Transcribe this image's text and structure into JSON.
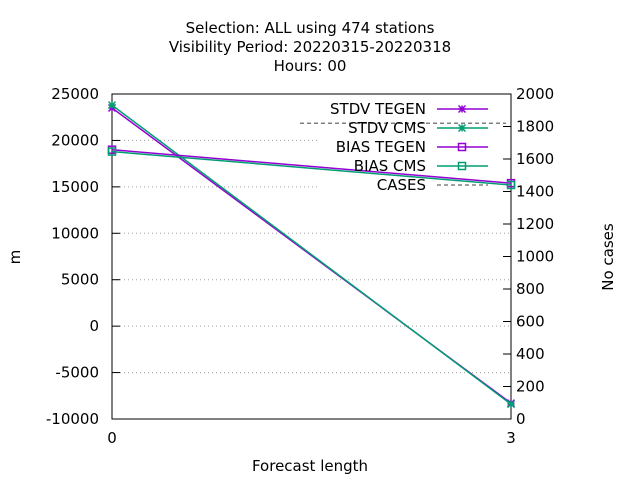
{
  "chart_data": {
    "type": "line",
    "title_lines": [
      "Selection: ALL using   474 stations",
      "Visibility   Period: 20220315-20220318",
      "Hours:  00"
    ],
    "xlabel": "Forecast length",
    "ylabel": "m",
    "y2label": "No cases",
    "x": [
      0,
      3
    ],
    "xticks": [
      "0",
      "3"
    ],
    "ylim": [
      -10000,
      25000
    ],
    "yticks": [
      "-10000",
      "-5000",
      "0",
      "5000",
      "10000",
      "15000",
      "20000",
      "25000"
    ],
    "y2lim": [
      0,
      2000
    ],
    "y2ticks": [
      "0",
      "200",
      "400",
      "600",
      "800",
      "1000",
      "1200",
      "1400",
      "1600",
      "1800",
      "2000"
    ],
    "grid": true,
    "legend_position": "top-right",
    "series": [
      {
        "name": "STDV TEGEN",
        "axis": "y",
        "values": [
          23500,
          -8300
        ],
        "color": "#9400d3",
        "marker": "x"
      },
      {
        "name": "STDV CMS",
        "axis": "y",
        "values": [
          23800,
          -8400
        ],
        "color": "#009e73",
        "marker": "x"
      },
      {
        "name": "BIAS TEGEN",
        "axis": "y",
        "values": [
          19000,
          15400
        ],
        "color": "#9400d3",
        "marker": "square"
      },
      {
        "name": "BIAS CMS",
        "axis": "y",
        "values": [
          18800,
          15200
        ],
        "color": "#009e73",
        "marker": "square"
      },
      {
        "name": "CASES",
        "axis": "y2",
        "values": [
          1820,
          1820
        ],
        "color": "#808080",
        "dashed": true
      }
    ]
  }
}
